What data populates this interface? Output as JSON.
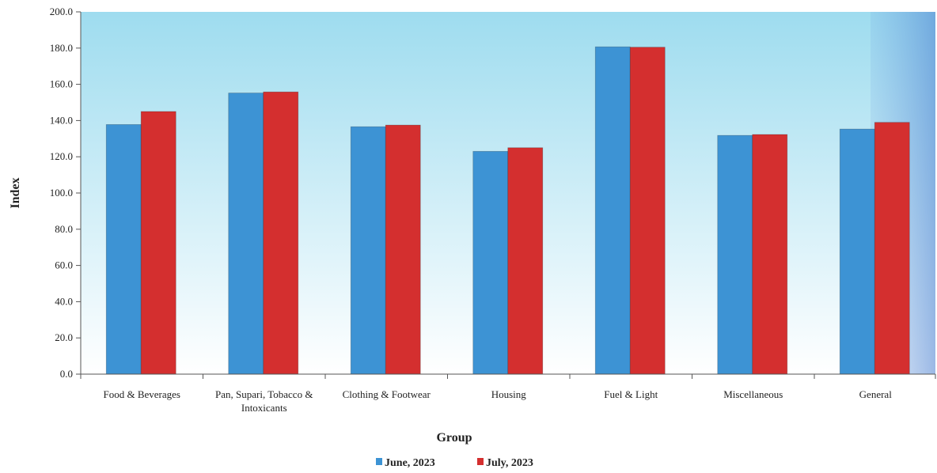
{
  "chart_data": {
    "type": "bar",
    "title": "",
    "xlabel": "Group",
    "ylabel": "Index",
    "ylim": [
      0,
      200
    ],
    "yticks": [
      0,
      20,
      40,
      60,
      80,
      100,
      120,
      140,
      160,
      180,
      200
    ],
    "ytick_labels": [
      "0.0",
      "20.0",
      "40.0",
      "60.0",
      "80.0",
      "100.0",
      "120.0",
      "140.0",
      "160.0",
      "180.0",
      "200.0"
    ],
    "grid": false,
    "legend_position": "bottom-center",
    "categories": [
      "Food & Beverages",
      "Pan, Supari, Tobacco & Intoxicants",
      "Clothing & Footwear",
      "Housing",
      "Fuel & Light",
      "Miscellaneous",
      "General"
    ],
    "category_lines": [
      [
        "Food & Beverages"
      ],
      [
        "Pan, Supari, Tobacco &",
        "Intoxicants"
      ],
      [
        "Clothing & Footwear"
      ],
      [
        "Housing"
      ],
      [
        "Fuel & Light"
      ],
      [
        "Miscellaneous"
      ],
      [
        "General"
      ]
    ],
    "series": [
      {
        "name": "June, 2023",
        "color": "#3d93d4",
        "values": [
          137.8,
          155.2,
          136.6,
          123.0,
          180.7,
          131.8,
          135.3
        ]
      },
      {
        "name": "July, 2023",
        "color": "#d42f2f",
        "values": [
          145.0,
          155.8,
          137.5,
          125.0,
          180.5,
          132.3,
          139.0
        ]
      }
    ],
    "colors": {
      "plot_top": "#9edcef",
      "plot_bottom": "#ffffff",
      "axis": "#555555"
    }
  }
}
